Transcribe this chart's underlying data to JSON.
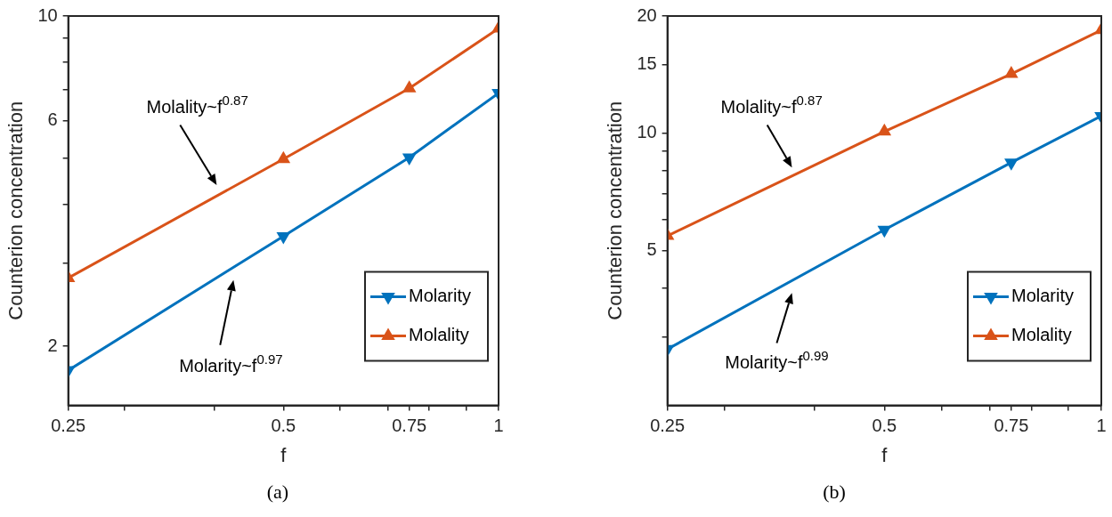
{
  "chart_data": [
    {
      "type": "line",
      "xlabel": "f",
      "ylabel": "Counterion concentration",
      "log": "xy",
      "marker": "triangle",
      "legend": "bottom right",
      "grid": false,
      "x": [
        0.25,
        0.5,
        0.75,
        1
      ],
      "xlim": [
        0.25,
        1
      ],
      "xticks": [
        0.25,
        {
          "value": 0.3,
          "label": null
        },
        {
          "value": 0.4,
          "label": null
        },
        0.5,
        {
          "value": 0.6,
          "label": null
        },
        {
          "value": 0.7,
          "label": null
        },
        0.75,
        {
          "value": 0.8,
          "label": null
        },
        {
          "value": 0.9,
          "label": null
        },
        1
      ],
      "ylim": [
        1.5,
        10
      ],
      "yticks": [
        2,
        {
          "value": 3,
          "label": null
        },
        {
          "value": 4,
          "label": null
        },
        {
          "value": 5,
          "label": null
        },
        6,
        {
          "value": 7,
          "label": null
        },
        {
          "value": 8,
          "label": null
        },
        {
          "value": 9,
          "label": null
        },
        10
      ],
      "series": [
        {
          "name": "Molarity",
          "color": "#0072bd",
          "values": [
            1.78,
            3.42,
            5.02,
            6.87
          ]
        },
        {
          "name": "Molality",
          "color": "#d95319",
          "values": [
            2.79,
            4.98,
            7.03,
            9.41
          ]
        }
      ],
      "annotations": [
        "Molality~f$^{0.87}$",
        "Molarity~f$^{0.97}$",
        "(a)"
      ]
    },
    {
      "type": "line",
      "xlabel": "f",
      "ylabel": "Counterion concentration",
      "log": "xy",
      "marker": "triangle",
      "legend": "bottom right",
      "grid": false,
      "x": [
        0.25,
        0.5,
        0.75,
        1
      ],
      "xlim": [
        0.25,
        1
      ],
      "xticks": [
        0.25,
        {
          "value": 0.3,
          "label": null
        },
        {
          "value": 0.4,
          "label": null
        },
        0.5,
        {
          "value": 0.6,
          "label": null
        },
        {
          "value": 0.7,
          "label": null
        },
        0.75,
        {
          "value": 0.8,
          "label": null
        },
        {
          "value": 0.9,
          "label": null
        },
        1
      ],
      "ylim": [
        2,
        20
      ],
      "yticks": [
        {
          "value": 3,
          "label": null
        },
        {
          "value": 4,
          "label": null
        },
        5,
        {
          "value": 6,
          "label": null
        },
        {
          "value": 7,
          "label": null
        },
        {
          "value": 8,
          "label": null
        },
        {
          "value": 9,
          "label": null
        },
        10,
        15,
        20
      ],
      "series": [
        {
          "name": "Molarity",
          "color": "#0072bd",
          "values": [
            2.79,
            5.65,
            8.41,
            11.07
          ]
        },
        {
          "name": "Molality",
          "color": "#d95319",
          "values": [
            5.45,
            10.1,
            14.2,
            18.4
          ]
        }
      ],
      "annotations": [
        "Molality~f$^{0.87}$",
        "Molarity~f$^{0.99}$",
        "(b)"
      ]
    }
  ]
}
